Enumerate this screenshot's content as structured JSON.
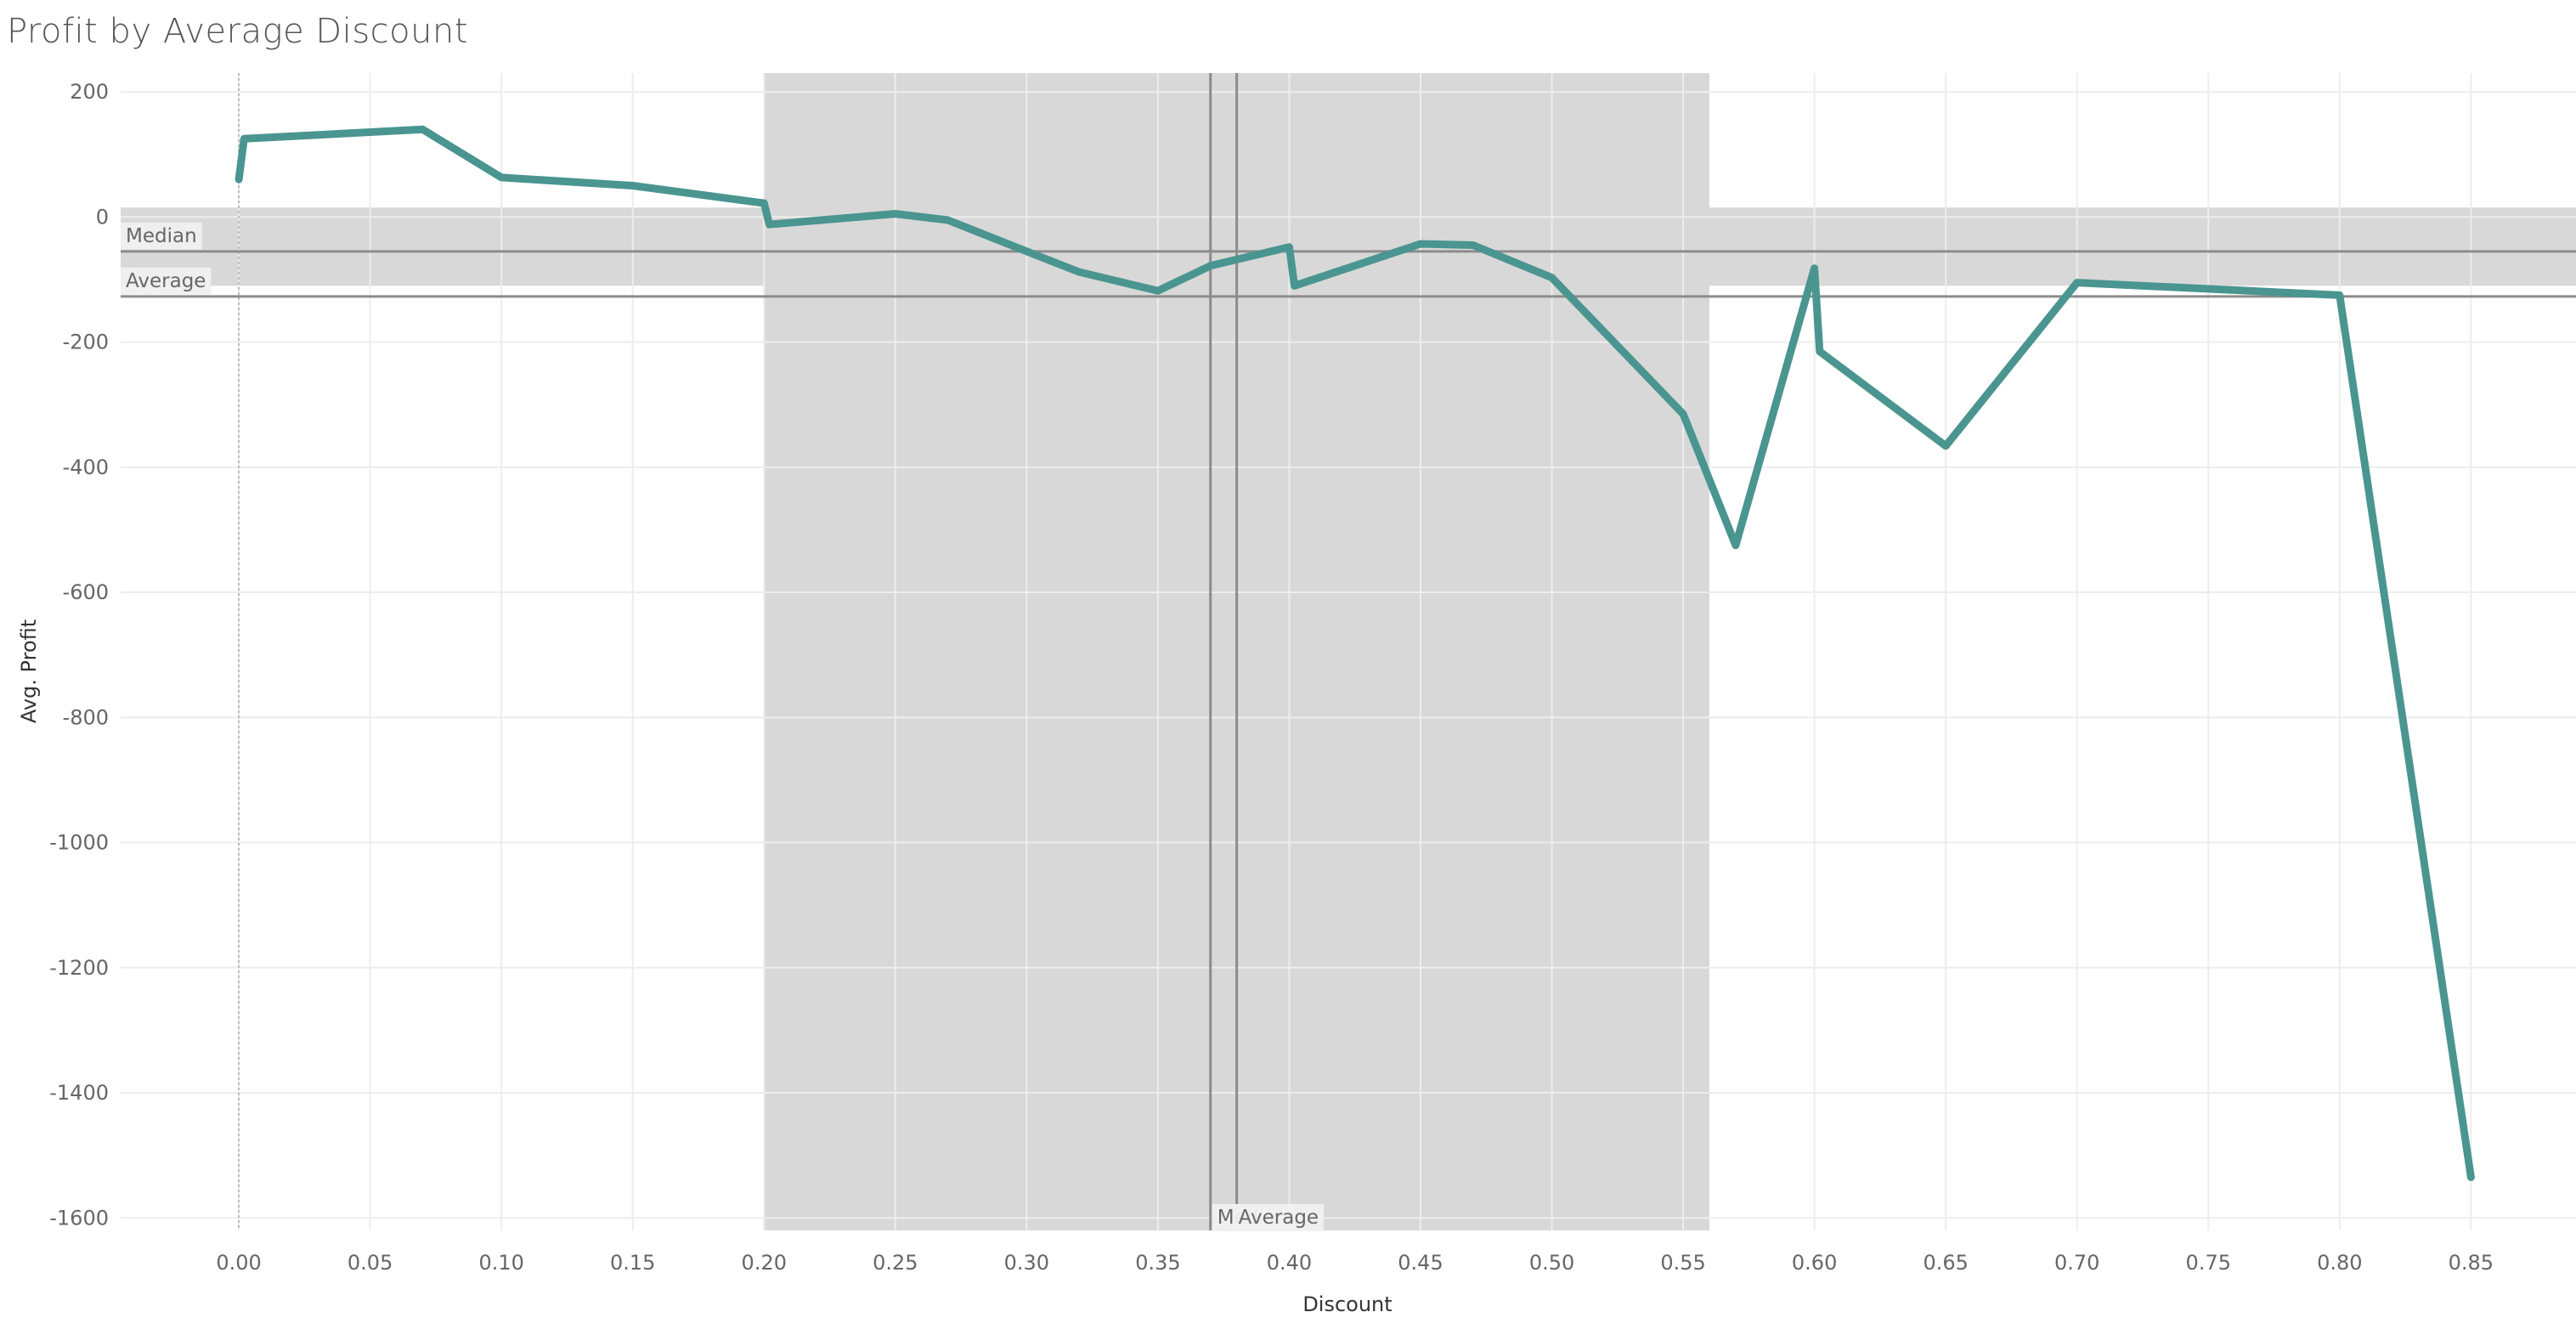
{
  "chart_data": {
    "type": "line",
    "title": "Profit by Average Discount",
    "xlabel": "Discount",
    "ylabel": "Avg. Profit",
    "xlim": [
      -0.045,
      0.89
    ],
    "ylim": [
      -1620,
      230
    ],
    "x_ticks": [
      "0.00",
      "0.05",
      "0.10",
      "0.15",
      "0.20",
      "0.25",
      "0.30",
      "0.35",
      "0.40",
      "0.45",
      "0.50",
      "0.55",
      "0.60",
      "0.65",
      "0.70",
      "0.75",
      "0.80",
      "0.85"
    ],
    "x_tick_values": [
      0,
      0.05,
      0.1,
      0.15,
      0.2,
      0.25,
      0.3,
      0.35,
      0.4,
      0.45,
      0.5,
      0.55,
      0.6,
      0.65,
      0.7,
      0.75,
      0.8,
      0.85
    ],
    "y_ticks": [
      "200",
      "0",
      "-200",
      "-400",
      "-600",
      "-800",
      "-1000",
      "-1200",
      "-1400",
      "-1600"
    ],
    "y_tick_values": [
      200,
      0,
      -200,
      -400,
      -600,
      -800,
      -1000,
      -1200,
      -1400,
      -1600
    ],
    "grid": true,
    "series": [
      {
        "color": "#4a9590",
        "x": [
          0.0,
          0.002,
          0.07,
          0.1,
          0.15,
          0.2,
          0.202,
          0.25,
          0.27,
          0.3,
          0.32,
          0.35,
          0.37,
          0.4,
          0.402,
          0.45,
          0.47,
          0.5,
          0.55,
          0.57,
          0.6,
          0.602,
          0.65,
          0.7,
          0.8,
          0.85
        ],
        "y": [
          60,
          125,
          140,
          63,
          50,
          22,
          -12,
          5,
          -5,
          -55,
          -88,
          -118,
          -78,
          -48,
          -110,
          -43,
          -45,
          -97,
          -315,
          -525,
          -82,
          -215,
          -366,
          -105,
          -125,
          -1535
        ]
      }
    ],
    "reference_bands": [
      {
        "axis": "x",
        "from": 0.2,
        "to": 0.56,
        "color": "#d8d8d8"
      },
      {
        "axis": "y",
        "from": 15,
        "to": -110,
        "color": "#d8d8d8"
      }
    ],
    "reference_lines": [
      {
        "axis": "y",
        "value": -55,
        "label": "Median",
        "color": "#8c8c8c"
      },
      {
        "axis": "y",
        "value": -127,
        "label": "Average",
        "color": "#8c8c8c"
      },
      {
        "axis": "x",
        "value": 0.37,
        "label": "Median",
        "color": "#8c8c8c"
      },
      {
        "axis": "x",
        "value": 0.38,
        "label": "Average",
        "color": "#8c8c8c"
      }
    ],
    "zero_line": {
      "axis": "x",
      "value": 0.0
    }
  }
}
